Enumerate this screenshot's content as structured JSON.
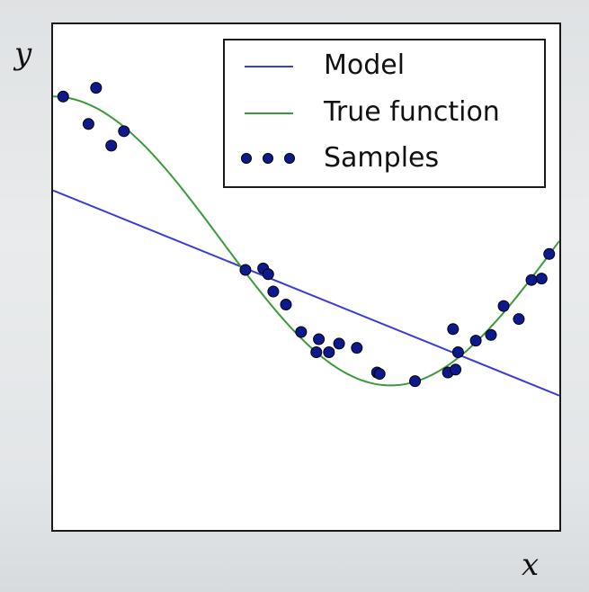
{
  "chart_data": {
    "type": "scatter",
    "xlabel": "x",
    "ylabel": "y",
    "xlim": [
      0,
      1
    ],
    "ylim": [
      -2,
      1.5
    ],
    "grid": false,
    "legend_position": "top-right",
    "series": [
      {
        "name": "Model",
        "kind": "line",
        "color": "#3b3bd9",
        "x": [
          0,
          1
        ],
        "y": [
          0.35,
          -1.07
        ]
      },
      {
        "name": "True function",
        "kind": "line",
        "color": "#3a9a3a",
        "function": "cos(1.5*pi*x)",
        "x_samples": 121
      },
      {
        "name": "Samples",
        "kind": "scatter",
        "color": "#0c1a8e",
        "points": [
          [
            0.02,
            1.0
          ],
          [
            0.07,
            0.81
          ],
          [
            0.085,
            1.06
          ],
          [
            0.115,
            0.66
          ],
          [
            0.14,
            0.76
          ],
          [
            0.38,
            -0.2
          ],
          [
            0.415,
            -0.19
          ],
          [
            0.425,
            -0.23
          ],
          [
            0.435,
            -0.35
          ],
          [
            0.46,
            -0.44
          ],
          [
            0.49,
            -0.63
          ],
          [
            0.52,
            -0.77
          ],
          [
            0.525,
            -0.68
          ],
          [
            0.545,
            -0.77
          ],
          [
            0.565,
            -0.71
          ],
          [
            0.6,
            -0.74
          ],
          [
            0.64,
            -0.91
          ],
          [
            0.645,
            -0.92
          ],
          [
            0.715,
            -0.97
          ],
          [
            0.78,
            -0.91
          ],
          [
            0.795,
            -0.89
          ],
          [
            0.79,
            -0.61
          ],
          [
            0.8,
            -0.77
          ],
          [
            0.835,
            -0.69
          ],
          [
            0.865,
            -0.65
          ],
          [
            0.89,
            -0.45
          ],
          [
            0.92,
            -0.54
          ],
          [
            0.945,
            -0.27
          ],
          [
            0.965,
            -0.26
          ],
          [
            0.98,
            -0.09
          ]
        ]
      }
    ]
  }
}
